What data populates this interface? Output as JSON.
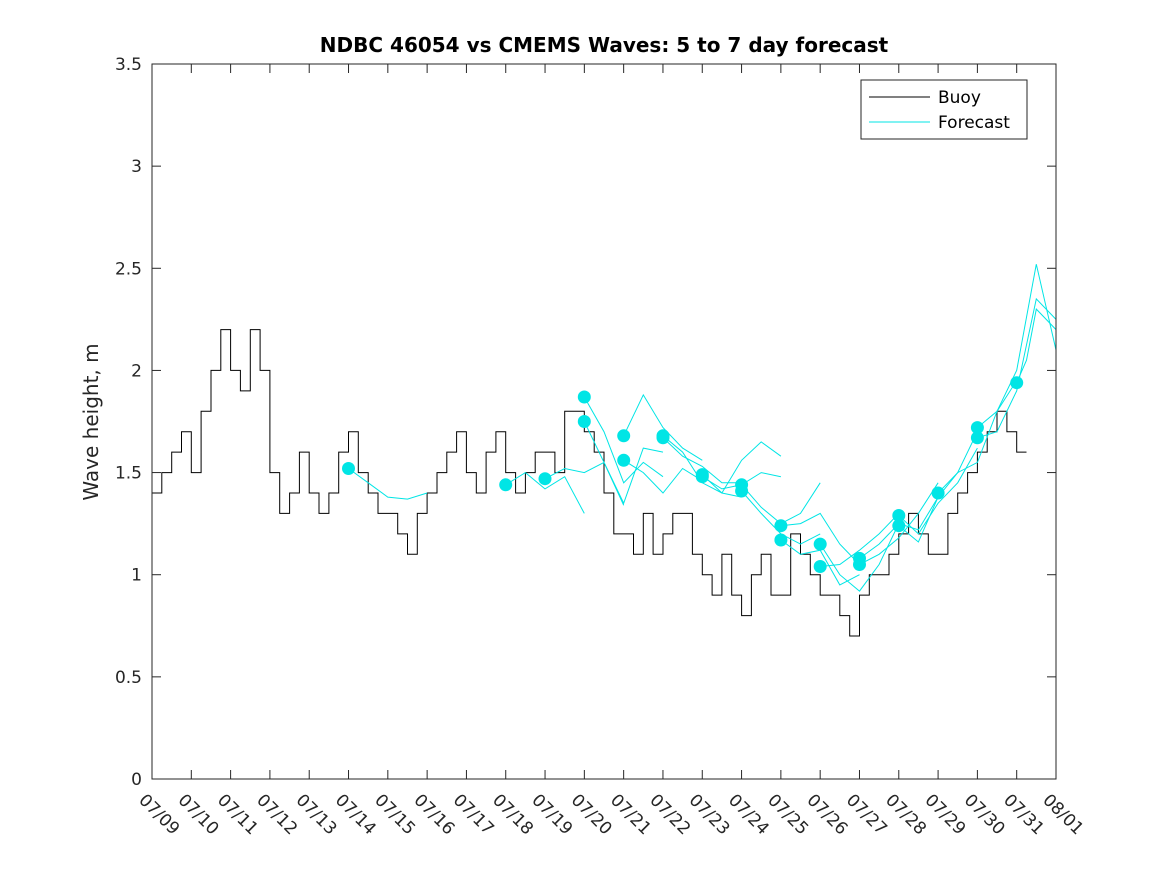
{
  "chart_data": {
    "type": "line",
    "title": "NDBC 46054 vs CMEMS Waves: 5 to 7 day forecast",
    "xlabel": "",
    "ylabel": "Wave height, m",
    "ylim": [
      0,
      3.5
    ],
    "xlim": [
      "2023-07-09",
      "2023-08-01"
    ],
    "x_tick_labels": [
      "07/09",
      "07/10",
      "07/11",
      "07/12",
      "07/13",
      "07/14",
      "07/15",
      "07/16",
      "07/17",
      "07/18",
      "07/19",
      "07/20",
      "07/21",
      "07/22",
      "07/23",
      "07/24",
      "07/25",
      "07/26",
      "07/27",
      "07/28",
      "07/29",
      "07/30",
      "07/31",
      "08/01"
    ],
    "y_tick_labels": [
      "0",
      "0.5",
      "1",
      "1.5",
      "2",
      "2.5",
      "3",
      "3.5"
    ],
    "y_ticks": [
      0,
      0.5,
      1,
      1.5,
      2,
      2.5,
      3,
      3.5
    ],
    "grid": false,
    "legend_position": "top-right",
    "colors": {
      "buoy": "#000000",
      "forecast": "#00e5e5",
      "axes": "#262626"
    },
    "series": [
      {
        "name": "Buoy",
        "x": [
          "07/09 00:00",
          "07/09 06:00",
          "07/09 12:00",
          "07/09 18:00",
          "07/10 00:00",
          "07/10 06:00",
          "07/10 12:00",
          "07/10 18:00",
          "07/11 00:00",
          "07/11 06:00",
          "07/11 12:00",
          "07/11 18:00",
          "07/12 00:00",
          "07/12 06:00",
          "07/12 12:00",
          "07/12 18:00",
          "07/13 00:00",
          "07/13 06:00",
          "07/13 12:00",
          "07/13 18:00",
          "07/14 00:00",
          "07/14 06:00",
          "07/14 12:00",
          "07/14 18:00",
          "07/15 00:00",
          "07/15 06:00",
          "07/15 12:00",
          "07/15 18:00",
          "07/16 00:00",
          "07/16 06:00",
          "07/16 12:00",
          "07/16 18:00",
          "07/17 00:00",
          "07/17 06:00",
          "07/17 12:00",
          "07/17 18:00",
          "07/18 00:00",
          "07/18 06:00",
          "07/18 12:00",
          "07/18 18:00",
          "07/19 00:00",
          "07/19 06:00",
          "07/19 12:00",
          "07/19 18:00",
          "07/20 00:00",
          "07/20 06:00",
          "07/20 12:00",
          "07/20 18:00",
          "07/21 00:00",
          "07/21 06:00",
          "07/21 12:00",
          "07/21 18:00",
          "07/22 00:00",
          "07/22 06:00",
          "07/22 12:00",
          "07/22 18:00",
          "07/23 00:00",
          "07/23 06:00",
          "07/23 12:00",
          "07/23 18:00",
          "07/24 00:00",
          "07/24 06:00",
          "07/24 12:00",
          "07/24 18:00",
          "07/25 00:00",
          "07/25 06:00",
          "07/25 12:00",
          "07/25 18:00",
          "07/26 00:00",
          "07/26 06:00",
          "07/26 12:00",
          "07/26 18:00",
          "07/27 00:00",
          "07/27 06:00",
          "07/27 12:00",
          "07/27 18:00",
          "07/28 00:00",
          "07/28 06:00",
          "07/28 12:00",
          "07/28 18:00",
          "07/29 00:00",
          "07/29 06:00",
          "07/29 12:00",
          "07/29 18:00",
          "07/30 00:00",
          "07/30 06:00",
          "07/30 12:00",
          "07/30 18:00",
          "07/31 00:00",
          "07/31 06:00"
        ],
        "values": [
          1.4,
          1.5,
          1.6,
          1.7,
          1.5,
          1.8,
          2.0,
          2.2,
          2.0,
          1.9,
          2.2,
          2.0,
          1.5,
          1.3,
          1.4,
          1.6,
          1.4,
          1.3,
          1.4,
          1.6,
          1.7,
          1.5,
          1.4,
          1.3,
          1.3,
          1.2,
          1.1,
          1.3,
          1.4,
          1.5,
          1.6,
          1.7,
          1.5,
          1.4,
          1.6,
          1.7,
          1.5,
          1.4,
          1.5,
          1.6,
          1.6,
          1.5,
          1.8,
          1.8,
          1.7,
          1.6,
          1.4,
          1.2,
          1.2,
          1.1,
          1.3,
          1.1,
          1.2,
          1.3,
          1.3,
          1.1,
          1.0,
          0.9,
          1.1,
          0.9,
          0.8,
          1.0,
          1.1,
          0.9,
          0.9,
          1.2,
          1.1,
          1.0,
          0.9,
          0.9,
          0.8,
          0.7,
          0.9,
          1.0,
          1.0,
          1.1,
          1.2,
          1.3,
          1.2,
          1.1,
          1.1,
          1.3,
          1.4,
          1.5,
          1.6,
          1.7,
          1.8,
          1.7,
          1.6,
          1.6
        ]
      },
      {
        "name": "Forecast",
        "runs": [
          {
            "x": [
              "07/14 00:00",
              "07/14 12:00",
              "07/15 00:00",
              "07/15 12:00",
              "07/16 00:00"
            ],
            "values": [
              1.52,
              1.45,
              1.38,
              1.37,
              1.4
            ]
          },
          {
            "x": [
              "07/18 00:00",
              "07/18 12:00",
              "07/19 00:00",
              "07/19 12:00",
              "07/20 00:00"
            ],
            "values": [
              1.44,
              1.5,
              1.42,
              1.48,
              1.3
            ]
          },
          {
            "x": [
              "07/19 00:00",
              "07/19 12:00",
              "07/20 00:00",
              "07/20 12:00",
              "07/21 00:00"
            ],
            "values": [
              1.47,
              1.52,
              1.5,
              1.55,
              1.34
            ]
          },
          {
            "x": [
              "07/20 00:00",
              "07/20 12:00",
              "07/21 00:00",
              "07/21 12:00",
              "07/22 00:00"
            ],
            "values": [
              1.87,
              1.7,
              1.45,
              1.55,
              1.48
            ]
          },
          {
            "x": [
              "07/20 00:00",
              "07/20 12:00",
              "07/21 00:00",
              "07/21 12:00",
              "07/22 00:00"
            ],
            "values": [
              1.75,
              1.55,
              1.35,
              1.62,
              1.6
            ]
          },
          {
            "x": [
              "07/21 00:00",
              "07/21 12:00",
              "07/22 00:00",
              "07/22 12:00",
              "07/23 00:00"
            ],
            "values": [
              1.68,
              1.88,
              1.72,
              1.62,
              1.56
            ]
          },
          {
            "x": [
              "07/21 00:00",
              "07/21 12:00",
              "07/22 00:00",
              "07/22 12:00",
              "07/23 00:00"
            ],
            "values": [
              1.56,
              1.5,
              1.4,
              1.52,
              1.46
            ]
          },
          {
            "x": [
              "07/22 00:00",
              "07/22 12:00",
              "07/23 00:00",
              "07/23 12:00",
              "07/24 00:00"
            ],
            "values": [
              1.67,
              1.58,
              1.53,
              1.45,
              1.45
            ]
          },
          {
            "x": [
              "07/22 00:00",
              "07/22 12:00",
              "07/23 00:00",
              "07/23 12:00",
              "07/24 00:00"
            ],
            "values": [
              1.68,
              1.6,
              1.45,
              1.4,
              1.38
            ]
          },
          {
            "x": [
              "07/23 00:00",
              "07/23 12:00",
              "07/24 00:00",
              "07/24 12:00",
              "07/25 00:00"
            ],
            "values": [
              1.49,
              1.4,
              1.56,
              1.65,
              1.58
            ]
          },
          {
            "x": [
              "07/23 00:00",
              "07/23 12:00",
              "07/24 00:00",
              "07/24 12:00",
              "07/25 00:00"
            ],
            "values": [
              1.48,
              1.42,
              1.44,
              1.5,
              1.48
            ]
          },
          {
            "x": [
              "07/24 00:00",
              "07/24 12:00",
              "07/25 00:00",
              "07/25 12:00",
              "07/26 00:00"
            ],
            "values": [
              1.44,
              1.33,
              1.25,
              1.3,
              1.45
            ]
          },
          {
            "x": [
              "07/24 00:00",
              "07/24 12:00",
              "07/25 00:00",
              "07/25 12:00",
              "07/26 00:00"
            ],
            "values": [
              1.41,
              1.3,
              1.2,
              1.15,
              1.2
            ]
          },
          {
            "x": [
              "07/25 00:00",
              "07/25 12:00",
              "07/26 00:00",
              "07/26 12:00",
              "07/27 00:00"
            ],
            "values": [
              1.24,
              1.25,
              1.3,
              1.15,
              1.05
            ]
          },
          {
            "x": [
              "07/25 00:00",
              "07/25 12:00",
              "07/26 00:00",
              "07/26 12:00",
              "07/27 00:00"
            ],
            "values": [
              1.17,
              1.1,
              1.12,
              0.95,
              1.0
            ]
          },
          {
            "x": [
              "07/26 00:00",
              "07/26 12:00",
              "07/27 00:00",
              "07/27 12:00",
              "07/28 00:00"
            ],
            "values": [
              1.15,
              1.0,
              0.92,
              1.05,
              1.25
            ]
          },
          {
            "x": [
              "07/26 00:00",
              "07/26 12:00",
              "07/27 00:00",
              "07/27 12:00",
              "07/28 00:00"
            ],
            "values": [
              1.04,
              1.05,
              1.12,
              1.2,
              1.3
            ]
          },
          {
            "x": [
              "07/27 00:00",
              "07/27 12:00",
              "07/28 00:00",
              "07/28 12:00",
              "07/29 00:00"
            ],
            "values": [
              1.08,
              1.15,
              1.25,
              1.22,
              1.38
            ]
          },
          {
            "x": [
              "07/27 00:00",
              "07/27 12:00",
              "07/28 00:00",
              "07/28 12:00",
              "07/29 00:00"
            ],
            "values": [
              1.05,
              1.1,
              1.18,
              1.3,
              1.45
            ]
          },
          {
            "x": [
              "07/28 00:00",
              "07/28 12:00",
              "07/29 00:00",
              "07/29 12:00",
              "07/30 00:00"
            ],
            "values": [
              1.29,
              1.2,
              1.35,
              1.45,
              1.62
            ]
          },
          {
            "x": [
              "07/28 00:00",
              "07/28 12:00",
              "07/29 00:00",
              "07/29 12:00",
              "07/30 00:00"
            ],
            "values": [
              1.24,
              1.16,
              1.38,
              1.5,
              1.7
            ]
          },
          {
            "x": [
              "07/29 00:00",
              "07/29 12:00",
              "07/30 00:00",
              "07/30 12:00",
              "07/31 00:00"
            ],
            "values": [
              1.4,
              1.5,
              1.55,
              1.8,
              1.95
            ]
          },
          {
            "x": [
              "07/30 00:00",
              "07/30 12:00",
              "07/31 00:00",
              "07/31 12:00",
              "08/01 00:00"
            ],
            "values": [
              1.72,
              1.8,
              2.0,
              2.52,
              2.1
            ]
          },
          {
            "x": [
              "07/30 00:00",
              "07/30 12:00",
              "07/31 00:00",
              "07/31 12:00",
              "08/01 00:00"
            ],
            "values": [
              1.67,
              1.7,
              1.9,
              2.35,
              2.25
            ]
          },
          {
            "x": [
              "07/31 00:00",
              "07/31 06:00",
              "07/31 12:00",
              "07/31 18:00",
              "08/01 00:00"
            ],
            "values": [
              1.94,
              2.05,
              2.3,
              2.25,
              2.2
            ]
          }
        ]
      }
    ]
  }
}
